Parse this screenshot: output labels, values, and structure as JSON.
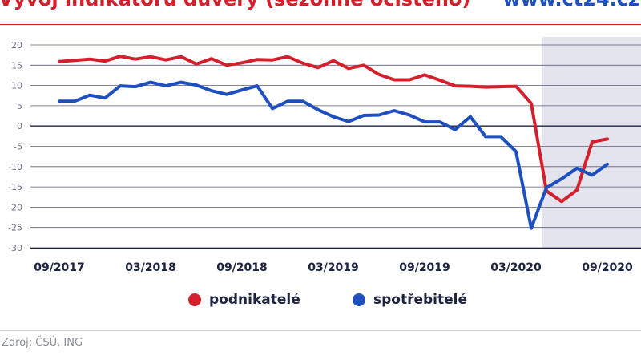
{
  "header": {
    "title": "Vývoj indikátorů důvěry (sezónně očištěno)",
    "brand": "www.ct24.cz"
  },
  "footer": {
    "source": "Zdroj: ČSÚ, ING"
  },
  "colors": {
    "red": "#d4202c",
    "blue": "#1d4fbf",
    "shade": "#e3e4ee",
    "axis": "#1d2340"
  },
  "chart_data": {
    "type": "line",
    "title": "Vývoj indikátorů důvěry (sezónně očištěno)",
    "xlabel": "",
    "ylabel": "",
    "ylim": [
      -30,
      20
    ],
    "yticks": [
      20,
      15,
      10,
      5,
      0,
      -5,
      -10,
      -15,
      -20,
      -25,
      -30
    ],
    "x_tick_labels": [
      {
        "label": "09/2017",
        "index": 0
      },
      {
        "label": "03/2018",
        "index": 6
      },
      {
        "label": "09/2018",
        "index": 12
      },
      {
        "label": "03/2019",
        "index": 18
      },
      {
        "label": "09/2019",
        "index": 24
      },
      {
        "label": "03/2020",
        "index": 30
      },
      {
        "label": "09/2020",
        "index": 36
      }
    ],
    "shaded_from_index": 32,
    "series": [
      {
        "name": "podnikatelé",
        "color": "#d4202c",
        "values": [
          15.9,
          16.2,
          16.5,
          16.0,
          17.2,
          16.5,
          17.1,
          16.3,
          17.1,
          15.3,
          16.6,
          15.0,
          15.6,
          16.4,
          16.3,
          17.1,
          15.5,
          14.4,
          16.1,
          14.2,
          15.0,
          12.7,
          11.4,
          11.4,
          12.6,
          11.3,
          9.9,
          9.8,
          9.6,
          9.7,
          9.8,
          5.6,
          -16.0,
          -18.6,
          -15.8,
          -3.9,
          -3.2
        ]
      },
      {
        "name": "spotřebitelé",
        "color": "#1d4fbf",
        "values": [
          6.1,
          6.1,
          7.6,
          6.9,
          9.9,
          9.7,
          10.8,
          9.9,
          10.8,
          10.1,
          8.7,
          7.8,
          8.9,
          9.9,
          4.3,
          6.1,
          6.1,
          4.0,
          2.3,
          1.1,
          2.6,
          2.7,
          3.8,
          2.7,
          1.0,
          1.0,
          -0.9,
          2.3,
          -2.6,
          -2.6,
          -6.3,
          -25.2,
          -15.2,
          -13.0,
          -10.4,
          -12.1,
          -9.4
        ]
      }
    ],
    "legend": [
      {
        "label": "podnikatelé",
        "color": "#d4202c"
      },
      {
        "label": "spotřebitelé",
        "color": "#1d4fbf"
      }
    ],
    "legend_position": "bottom-center"
  }
}
